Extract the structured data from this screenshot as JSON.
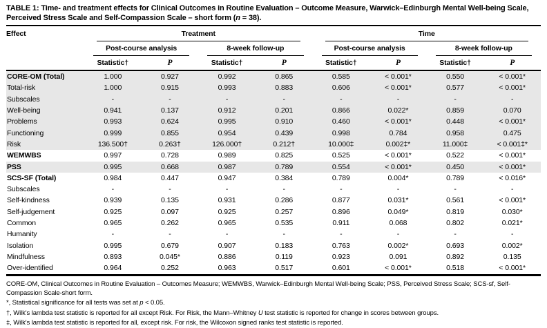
{
  "title": {
    "prefix": "TABLE 1:",
    "before_n": " Time- and treatment effects for Clinical Outcomes in Routine Evaluation – Outcome Measure, Warwick–Edinburgh Mental Well-being Scale, Perceived Stress Scale and Self-Compassion Scale – short form (",
    "n": "n",
    "after_n": " = 38)."
  },
  "colors": {
    "shaded_row": "#e7e7e7",
    "rule": "#000000"
  },
  "table": {
    "effect_header": "Effect",
    "groups": [
      "Treatment",
      "Time"
    ],
    "subgroups": [
      "Post-course analysis",
      "8-week follow-up",
      "Post-course analysis",
      "8-week follow-up"
    ],
    "stat_header": "Statistic†",
    "p_header": "P",
    "rows": [
      {
        "label": "CORE-OM (Total)",
        "bold": true,
        "shaded": true,
        "values": [
          "1.000",
          "0.927",
          "0.992",
          "0.865",
          "0.585",
          "< 0.001*",
          "0.550",
          "< 0.001*"
        ]
      },
      {
        "label": "Total-risk",
        "bold": false,
        "shaded": true,
        "values": [
          "1.000",
          "0.915",
          "0.993",
          "0.883",
          "0.606",
          "< 0.001*",
          "0.577",
          "< 0.001*"
        ]
      },
      {
        "label": "Subscales",
        "bold": false,
        "shaded": true,
        "values": [
          "-",
          "-",
          "-",
          "-",
          "-",
          "-",
          "-",
          "-"
        ]
      },
      {
        "label": "Well-being",
        "bold": false,
        "shaded": true,
        "values": [
          "0.941",
          "0.137",
          "0.912",
          "0.201",
          "0.866",
          "0.022*",
          "0.859",
          "0.070"
        ]
      },
      {
        "label": "Problems",
        "bold": false,
        "shaded": true,
        "values": [
          "0.993",
          "0.624",
          "0.995",
          "0.910",
          "0.460",
          "< 0.001*",
          "0.448",
          "< 0.001*"
        ]
      },
      {
        "label": "Functioning",
        "bold": false,
        "shaded": true,
        "values": [
          "0.999",
          "0.855",
          "0.954",
          "0.439",
          "0.998",
          "0.784",
          "0.958",
          "0.475"
        ]
      },
      {
        "label": "Risk",
        "bold": false,
        "shaded": true,
        "values": [
          "136.500†",
          "0.263†",
          "126.000†",
          "0.212†",
          "10.000‡",
          "0.002‡*",
          "11.000‡",
          "< 0.001‡*"
        ]
      },
      {
        "label": "WEMWBS",
        "bold": true,
        "shaded": false,
        "values": [
          "0.997",
          "0.728",
          "0.989",
          "0.825",
          "0.525",
          "< 0.001*",
          "0.522",
          "< 0.001*"
        ]
      },
      {
        "label": "PSS",
        "bold": true,
        "shaded": true,
        "values": [
          "0.995",
          "0.668",
          "0.987",
          "0.789",
          "0.554",
          "< 0.001*",
          "0.450",
          "< 0.001*"
        ]
      },
      {
        "label": "SCS-SF (Total)",
        "bold": true,
        "shaded": false,
        "values": [
          "0.984",
          "0.447",
          "0.947",
          "0.384",
          "0.789",
          "0.004*",
          "0.789",
          "< 0.016*"
        ]
      },
      {
        "label": "Subscales",
        "bold": false,
        "shaded": false,
        "values": [
          "-",
          "-",
          "-",
          "-",
          "-",
          "-",
          "-",
          "-"
        ]
      },
      {
        "label": "Self-kindness",
        "bold": false,
        "shaded": false,
        "values": [
          "0.939",
          "0.135",
          "0.931",
          "0.286",
          "0.877",
          "0.031*",
          "0.561",
          "< 0.001*"
        ]
      },
      {
        "label": "Self-judgement",
        "bold": false,
        "shaded": false,
        "values": [
          "0.925",
          "0.097",
          "0.925",
          "0.257",
          "0.896",
          "0.049*",
          "0.819",
          "0.030*"
        ]
      },
      {
        "label": "Common",
        "bold": false,
        "shaded": false,
        "values": [
          "0.965",
          "0.262",
          "0.965",
          "0.535",
          "0.911",
          "0.068",
          "0.802",
          "0.021*"
        ]
      },
      {
        "label": "Humanity",
        "bold": false,
        "shaded": false,
        "values": [
          "-",
          "-",
          "-",
          "-",
          "-",
          "-",
          "-",
          "-"
        ]
      },
      {
        "label": "Isolation",
        "bold": false,
        "shaded": false,
        "values": [
          "0.995",
          "0.679",
          "0.907",
          "0.183",
          "0.763",
          "0.002*",
          "0.693",
          "0.002*"
        ]
      },
      {
        "label": "Mindfulness",
        "bold": false,
        "shaded": false,
        "values": [
          "0.893",
          "0.045*",
          "0.886",
          "0.119",
          "0.923",
          "0.091",
          "0.892",
          "0.135"
        ]
      },
      {
        "label": "Over-identified",
        "bold": false,
        "shaded": false,
        "values": [
          "0.964",
          "0.252",
          "0.963",
          "0.517",
          "0.601",
          "< 0.001*",
          "0.518",
          "< 0.001*"
        ]
      }
    ]
  },
  "footnotes": [
    [
      {
        "t": "CORE-OM, Clinical Outcomes in Routine Evaluation – Outcomes Measure; WEMWBS, Warwick–Edinburgh Mental Well-being Scale; PSS, Perceived Stress Scale; SCS-sf, Self-Compassion Scale-short form."
      }
    ],
    [
      {
        "t": "*, Statistical significance for all tests was set at "
      },
      {
        "t": "p",
        "i": true
      },
      {
        "t": " < 0.05."
      }
    ],
    [
      {
        "t": "†, Wilk's lambda test statistic is reported for all except Risk. For Risk, the Mann–Whitney "
      },
      {
        "t": "U",
        "i": true
      },
      {
        "t": " test statistic is reported for change in scores between groups."
      }
    ],
    [
      {
        "t": "‡, Wilk's lambda test statistic is reported for all, except risk. For risk, the Wilcoxon signed ranks test statistic is reported."
      }
    ]
  ]
}
